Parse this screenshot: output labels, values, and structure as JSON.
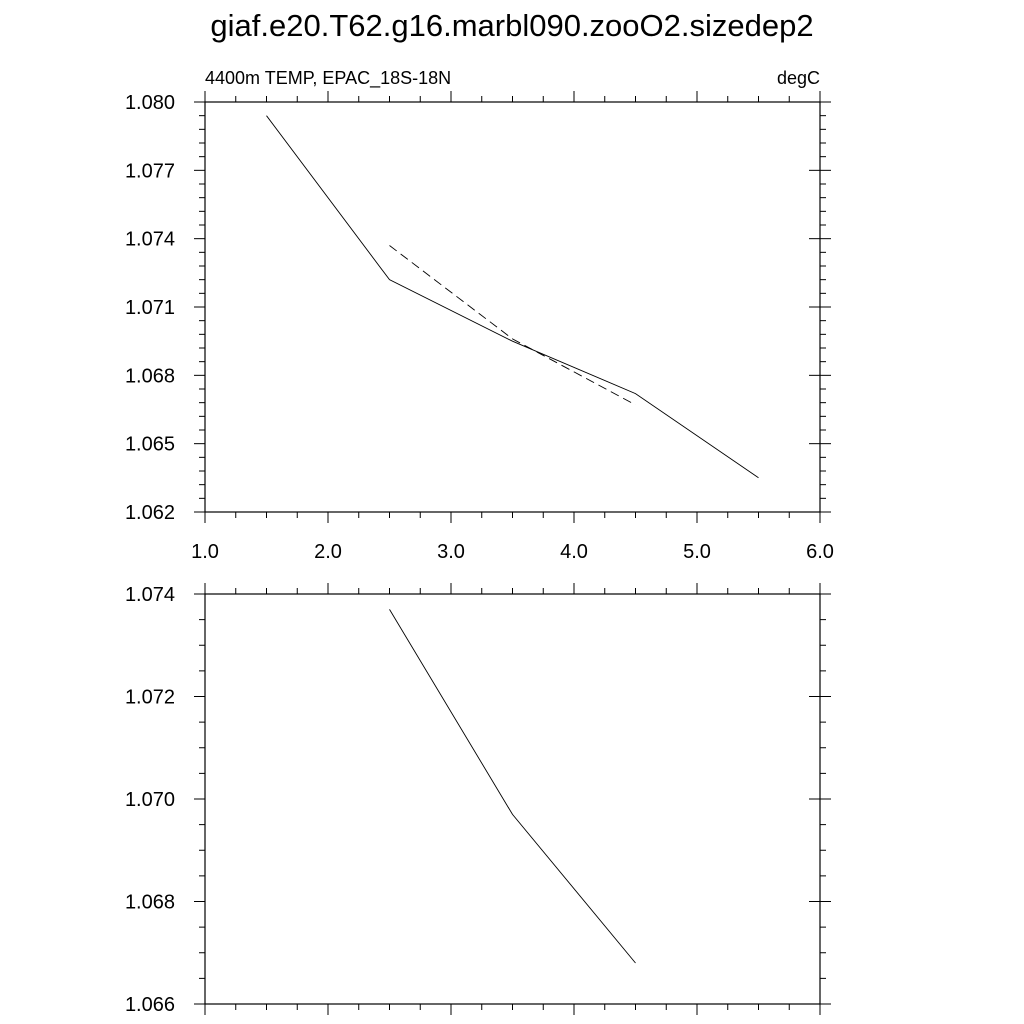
{
  "figure_title": "giaf.e20.T62.g16.marbl090.zooO2.sizedep2",
  "chart_data": [
    {
      "type": "line",
      "left_label": "4400m TEMP, EPAC_18S-18N",
      "right_label": "degC",
      "xlim": [
        1.0,
        6.0
      ],
      "ylim": [
        1.062,
        1.08
      ],
      "x_ticks": [
        1.0,
        2.0,
        3.0,
        4.0,
        5.0,
        6.0
      ],
      "x_tick_labels": [
        "1.0",
        "2.0",
        "3.0",
        "4.0",
        "5.0",
        "6.0"
      ],
      "y_ticks": [
        1.062,
        1.065,
        1.068,
        1.071,
        1.074,
        1.077,
        1.08
      ],
      "y_tick_labels": [
        "1.062",
        "1.065",
        "1.068",
        "1.071",
        "1.074",
        "1.077",
        "1.080"
      ],
      "grid": false,
      "series": [
        {
          "style": "solid",
          "x": [
            1.5,
            2.5,
            3.5,
            4.5,
            5.5
          ],
          "y": [
            1.0794,
            1.0722,
            1.0695,
            1.0672,
            1.0635
          ]
        },
        {
          "style": "dashed",
          "x": [
            2.5,
            3.5,
            4.5
          ],
          "y": [
            1.0737,
            1.0696,
            1.0667
          ]
        }
      ]
    },
    {
      "type": "line",
      "xlim": [
        1.0,
        6.0
      ],
      "ylim": [
        1.066,
        1.074
      ],
      "x_ticks": [
        1.0,
        2.0,
        3.0,
        4.0,
        5.0,
        6.0
      ],
      "y_ticks": [
        1.066,
        1.068,
        1.07,
        1.072,
        1.074
      ],
      "y_tick_labels": [
        "1.066",
        "1.068",
        "1.070",
        "1.072",
        "1.074"
      ],
      "grid": false,
      "series": [
        {
          "style": "solid",
          "x": [
            2.5,
            3.5,
            4.5
          ],
          "y": [
            1.0737,
            1.0697,
            1.0668
          ]
        }
      ]
    }
  ]
}
